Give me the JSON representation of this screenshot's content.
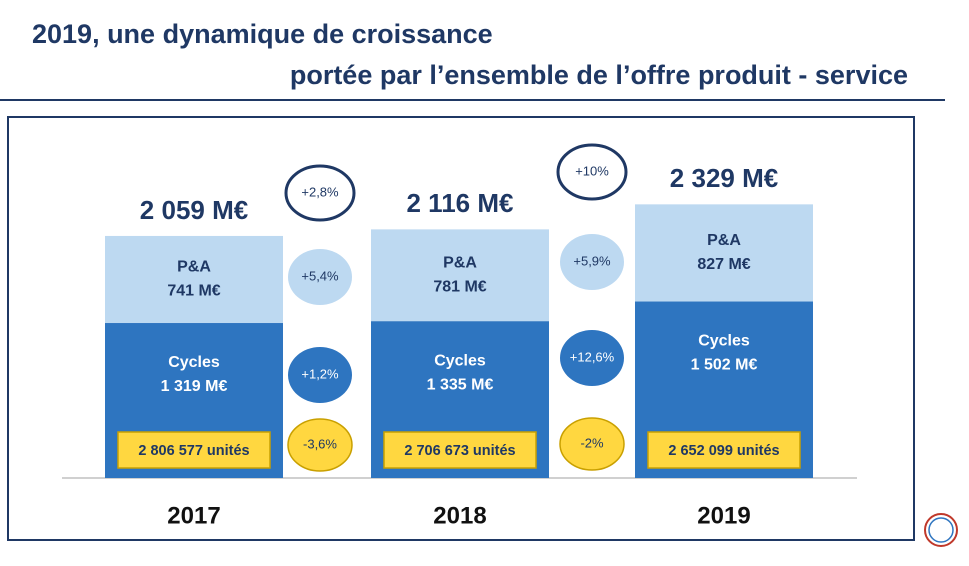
{
  "chart_data": {
    "type": "bar",
    "stacked": true,
    "title": "2019, une dynamique de croissance",
    "subtitle": "portée par l’ensemble de l’offre produit - service",
    "categories": [
      "2017",
      "2018",
      "2019"
    ],
    "series": [
      {
        "name": "Cycles",
        "color": "#2e75c0",
        "values": [
          1319,
          1335,
          1502
        ],
        "value_labels": [
          "1 319 M€",
          "1 335 M€",
          "1 502 M€"
        ]
      },
      {
        "name": "P&A",
        "color": "#bdd9f1",
        "values": [
          741,
          781,
          827
        ],
        "value_labels": [
          "741 M€",
          "781 M€",
          "827 M€"
        ]
      }
    ],
    "totals": {
      "values": [
        2059,
        2116,
        2329
      ],
      "value_labels": [
        "2 059 M€",
        "2 116 M€",
        "2 329 M€"
      ]
    },
    "units": {
      "color": "#ffd740",
      "values": [
        2806577,
        2706673,
        2652099
      ],
      "value_labels": [
        "2 806 577 unités",
        "2 706 673 unités",
        "2 652 099 unités"
      ]
    },
    "growth": {
      "total": {
        "values": [
          2.8,
          10
        ],
        "value_labels": [
          "+2,8%",
          "+10%"
        ]
      },
      "pa": {
        "values": [
          5.4,
          5.9
        ],
        "value_labels": [
          "+5,4%",
          "+5,9%"
        ]
      },
      "cycles": {
        "values": [
          1.2,
          12.6
        ],
        "value_labels": [
          "+1,2%",
          "+12,6%"
        ]
      },
      "units": {
        "values": [
          -3.6,
          -2
        ],
        "value_labels": [
          "-3,6%",
          "-2%"
        ]
      }
    }
  }
}
